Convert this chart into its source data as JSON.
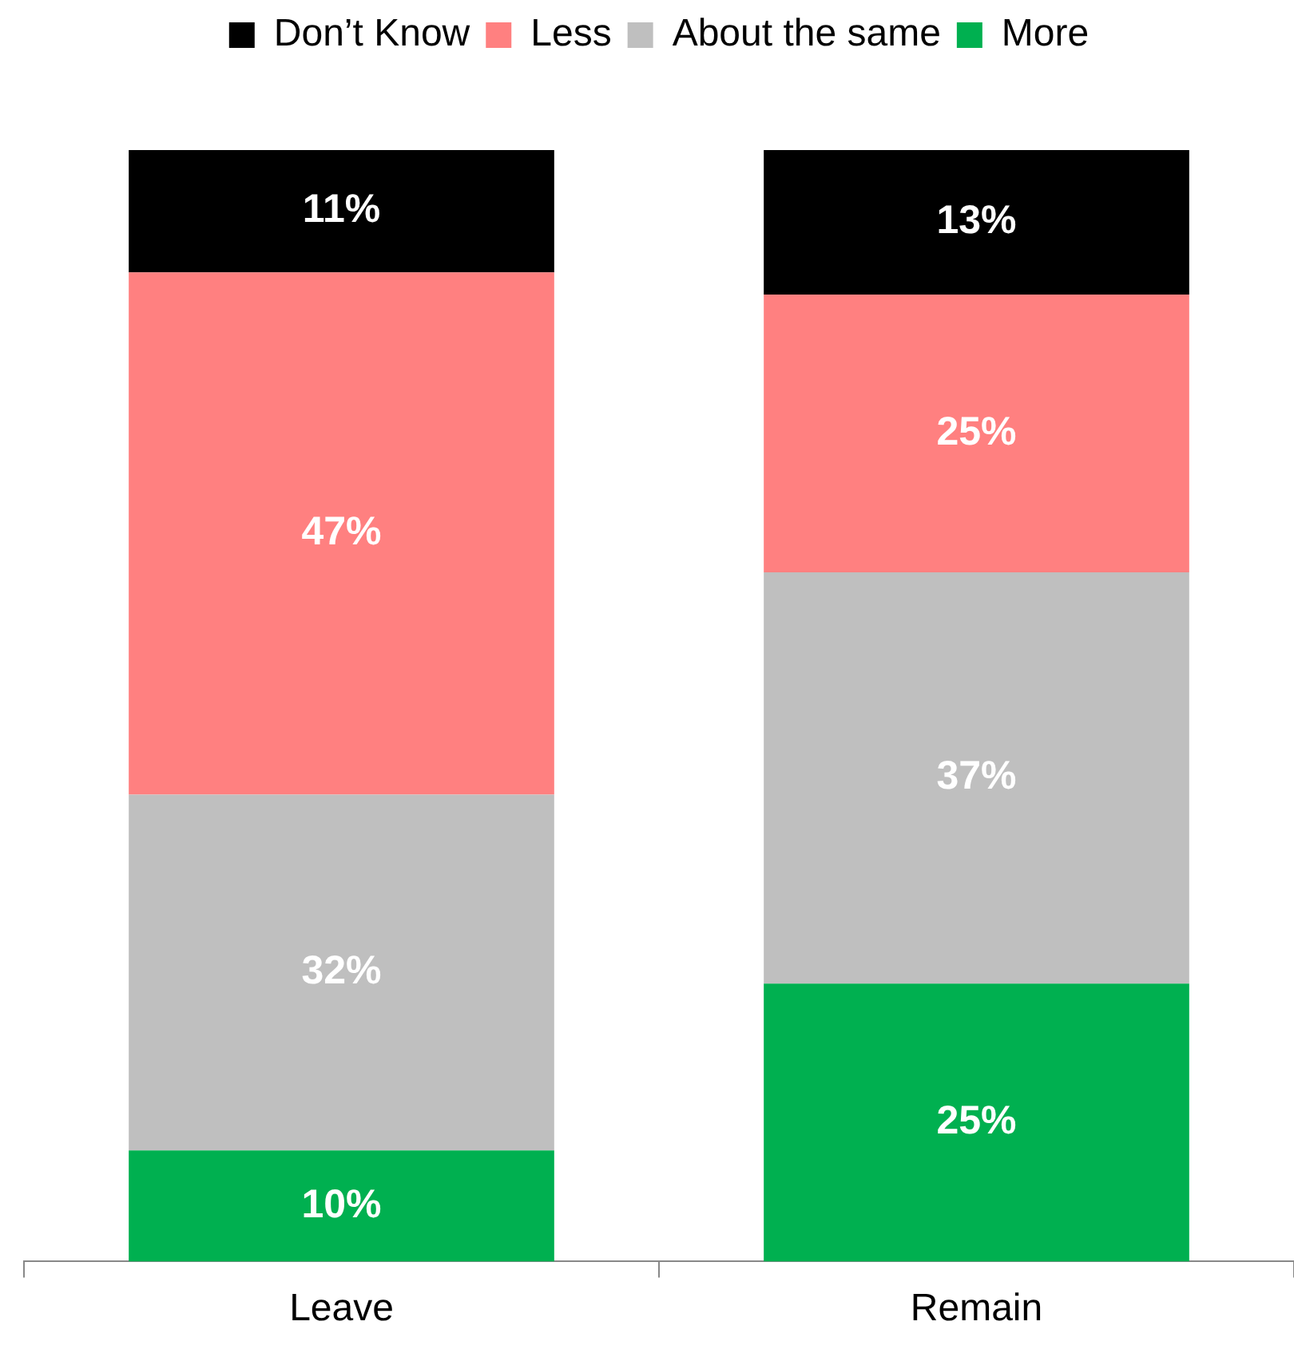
{
  "chart_data": {
    "type": "bar",
    "stacked": true,
    "categories": [
      "Leave",
      "Remain"
    ],
    "series": [
      {
        "name": "More",
        "color": "#00b050",
        "values": [
          10,
          25
        ],
        "value_labels": [
          "10%",
          "25%"
        ]
      },
      {
        "name": "About the same",
        "color": "#bfbfbf",
        "values": [
          32,
          37
        ],
        "value_labels": [
          "32%",
          "37%"
        ]
      },
      {
        "name": "Less",
        "color": "#ff8080",
        "values": [
          47,
          25
        ],
        "value_labels": [
          "47%",
          "25%"
        ]
      },
      {
        "name": "Don’t Know",
        "color": "#000000",
        "values": [
          11,
          13
        ],
        "value_labels": [
          "11%",
          "13%"
        ]
      }
    ],
    "legend": "top",
    "grid": false,
    "tick_labels": "x"
  }
}
